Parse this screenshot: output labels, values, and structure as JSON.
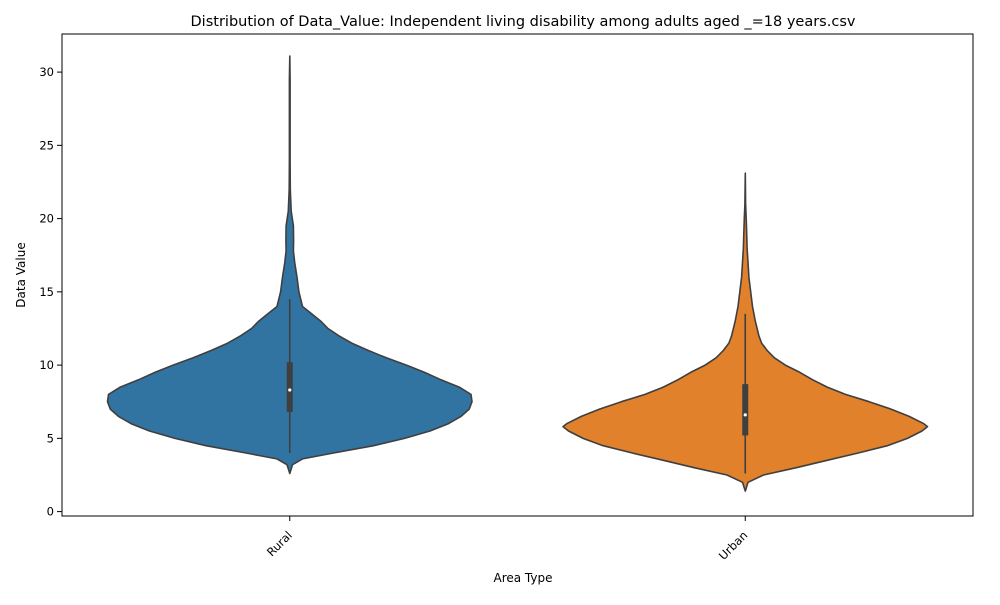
{
  "chart_data": {
    "type": "violin",
    "title": "Distribution of Data_Value: Independent living disability among adults aged _=18 years.csv",
    "xlabel": "Area Type",
    "ylabel": "Data Value",
    "categories": [
      "Rural",
      "Urban"
    ],
    "ylim": [
      -0.3,
      32.6
    ],
    "yticks": [
      0,
      5,
      10,
      15,
      20,
      25,
      30
    ],
    "grid": false,
    "legend": "none",
    "colors": {
      "Rural": "#3274a1",
      "Urban": "#e1812c",
      "outline": "#3f3f3f",
      "median": "#ffffff"
    },
    "violins": [
      {
        "category": "Rural",
        "min": 2.6,
        "max": 31.1,
        "q1": 6.8,
        "median": 8.3,
        "q3": 10.2,
        "whisker_low": 4.0,
        "whisker_high": 14.5,
        "density": [
          [
            2.6,
            0.0
          ],
          [
            3.2,
            0.015
          ],
          [
            3.6,
            0.07
          ],
          [
            4.0,
            0.24
          ],
          [
            4.5,
            0.46
          ],
          [
            5.0,
            0.63
          ],
          [
            5.5,
            0.77
          ],
          [
            6.0,
            0.87
          ],
          [
            6.5,
            0.94
          ],
          [
            7.0,
            0.985
          ],
          [
            7.5,
            1.0
          ],
          [
            8.0,
            0.995
          ],
          [
            8.5,
            0.93
          ],
          [
            9.0,
            0.83
          ],
          [
            9.5,
            0.74
          ],
          [
            10.0,
            0.64
          ],
          [
            10.5,
            0.53
          ],
          [
            11.0,
            0.43
          ],
          [
            11.5,
            0.34
          ],
          [
            12.0,
            0.27
          ],
          [
            12.5,
            0.21
          ],
          [
            13.0,
            0.17
          ],
          [
            13.5,
            0.12
          ],
          [
            14.0,
            0.07
          ],
          [
            15.0,
            0.05
          ],
          [
            16.0,
            0.04
          ],
          [
            17.0,
            0.027
          ],
          [
            17.8,
            0.02
          ],
          [
            18.5,
            0.021
          ],
          [
            19.5,
            0.02
          ],
          [
            20.5,
            0.008
          ],
          [
            22.0,
            0.003
          ],
          [
            24.0,
            0.002
          ],
          [
            27.0,
            0.002
          ],
          [
            29.5,
            0.002
          ],
          [
            31.1,
            0.0
          ]
        ]
      },
      {
        "category": "Urban",
        "min": 1.4,
        "max": 23.1,
        "q1": 5.2,
        "median": 6.6,
        "q3": 8.7,
        "whisker_low": 2.6,
        "whisker_high": 13.5,
        "density": [
          [
            1.4,
            0.0
          ],
          [
            2.0,
            0.015
          ],
          [
            2.5,
            0.1
          ],
          [
            3.0,
            0.28
          ],
          [
            3.5,
            0.45
          ],
          [
            4.0,
            0.62
          ],
          [
            4.5,
            0.78
          ],
          [
            5.0,
            0.89
          ],
          [
            5.5,
            0.97
          ],
          [
            5.8,
            1.0
          ],
          [
            6.0,
            0.98
          ],
          [
            6.5,
            0.9
          ],
          [
            7.0,
            0.8
          ],
          [
            7.5,
            0.68
          ],
          [
            8.0,
            0.55
          ],
          [
            8.5,
            0.45
          ],
          [
            9.0,
            0.37
          ],
          [
            9.5,
            0.3
          ],
          [
            10.0,
            0.22
          ],
          [
            10.5,
            0.16
          ],
          [
            11.0,
            0.12
          ],
          [
            11.5,
            0.09
          ],
          [
            12.0,
            0.075
          ],
          [
            13.0,
            0.055
          ],
          [
            14.0,
            0.04
          ],
          [
            15.0,
            0.03
          ],
          [
            16.0,
            0.02
          ],
          [
            17.0,
            0.015
          ],
          [
            18.0,
            0.01
          ],
          [
            19.0,
            0.008
          ],
          [
            20.0,
            0.005
          ],
          [
            21.0,
            0.002
          ],
          [
            23.1,
            0.0
          ]
        ]
      }
    ]
  }
}
